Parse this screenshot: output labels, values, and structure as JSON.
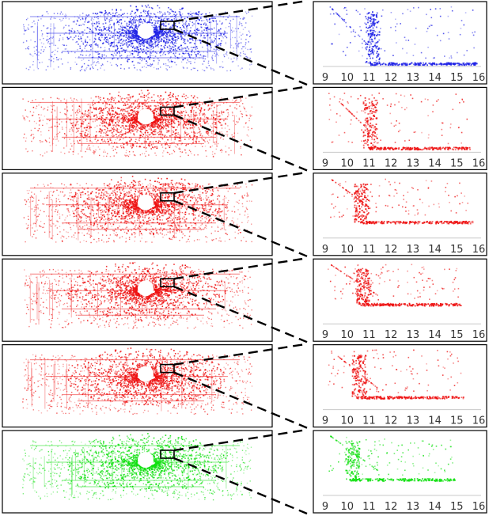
{
  "rows": [
    {
      "id": "row-1",
      "color": "#1f22e6",
      "axis_start": 9,
      "curve": {
        "x_knee": 11.0,
        "baseline": 0.88,
        "tail_end": 15.9,
        "density": 1.0
      }
    },
    {
      "id": "row-2",
      "color": "#ee1111",
      "axis_start": 9,
      "curve": {
        "x_knee": 10.9,
        "baseline": 0.86,
        "tail_end": 15.6,
        "density": 0.9
      }
    },
    {
      "id": "row-3",
      "color": "#ee1111",
      "axis_start": 9,
      "curve": {
        "x_knee": 10.5,
        "baseline": 0.66,
        "tail_end": 15.7,
        "density": 0.9
      }
    },
    {
      "id": "row-4",
      "color": "#ee1111",
      "axis_start": 9,
      "curve": {
        "x_knee": 10.6,
        "baseline": 0.6,
        "tail_end": 15.2,
        "density": 0.95
      }
    },
    {
      "id": "row-5",
      "color": "#ee1111",
      "axis_start": 9,
      "curve": {
        "x_knee": 10.4,
        "baseline": 0.72,
        "tail_end": 15.3,
        "density": 0.9
      }
    },
    {
      "id": "row-6",
      "color": "#10e010",
      "axis_start": 9,
      "curve": {
        "x_knee": 10.1,
        "baseline": 0.66,
        "tail_end": 14.9,
        "density": 0.85
      }
    }
  ],
  "x_ticks": [
    "9",
    "10",
    "11",
    "12",
    "13",
    "14",
    "15",
    "16"
  ]
}
